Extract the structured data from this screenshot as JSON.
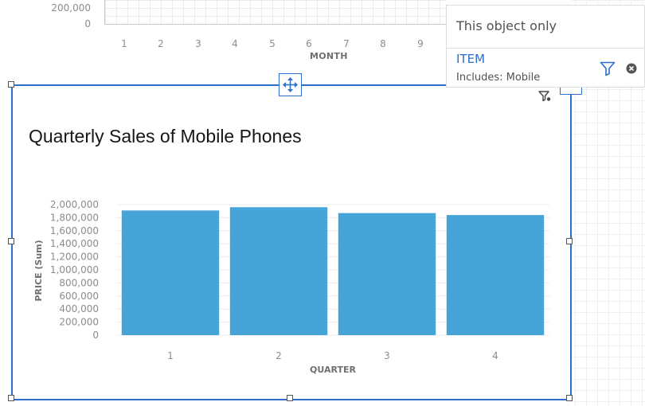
{
  "top_chart": {
    "y_ticks": [
      "200,000",
      "0"
    ],
    "x_ticks": [
      "1",
      "2",
      "3",
      "4",
      "5",
      "6",
      "7",
      "8",
      "9"
    ],
    "xlabel": "MONTH"
  },
  "visualization": {
    "title": "Quarterly Sales of Mobile Phones"
  },
  "chart_data": {
    "type": "bar",
    "title": "Quarterly Sales of Mobile Phones",
    "categories": [
      "1",
      "2",
      "3",
      "4"
    ],
    "values": [
      1910000,
      1960000,
      1870000,
      1840000
    ],
    "xlabel": "QUARTER",
    "ylabel": "PRICE (Sum)",
    "ylim": [
      0,
      2000000
    ],
    "y_ticks": [
      {
        "value": 0,
        "label": "0"
      },
      {
        "value": 200000,
        "label": "200,000"
      },
      {
        "value": 400000,
        "label": "400,000"
      },
      {
        "value": 600000,
        "label": "600,000"
      },
      {
        "value": 800000,
        "label": "800,000"
      },
      {
        "value": 1000000,
        "label": "1,000,000"
      },
      {
        "value": 1200000,
        "label": "1,200,000"
      },
      {
        "value": 1400000,
        "label": "1,400,000"
      },
      {
        "value": 1600000,
        "label": "1,600,000"
      },
      {
        "value": 1800000,
        "label": "1,800,000"
      },
      {
        "value": 2000000,
        "label": "2,000,000"
      }
    ],
    "bar_color": "#46a4d8",
    "grid": true
  },
  "filter_popover": {
    "title": "This object only",
    "filter_name": "ITEM",
    "filter_desc": "Includes: Mobile"
  },
  "colors": {
    "selection": "#2d6fc9",
    "link": "#2d6fc9",
    "bar": "#46a4d8"
  },
  "icons": {
    "move": "move-arrows-icon",
    "filter": "filter-icon",
    "remove": "close-circle-icon"
  }
}
